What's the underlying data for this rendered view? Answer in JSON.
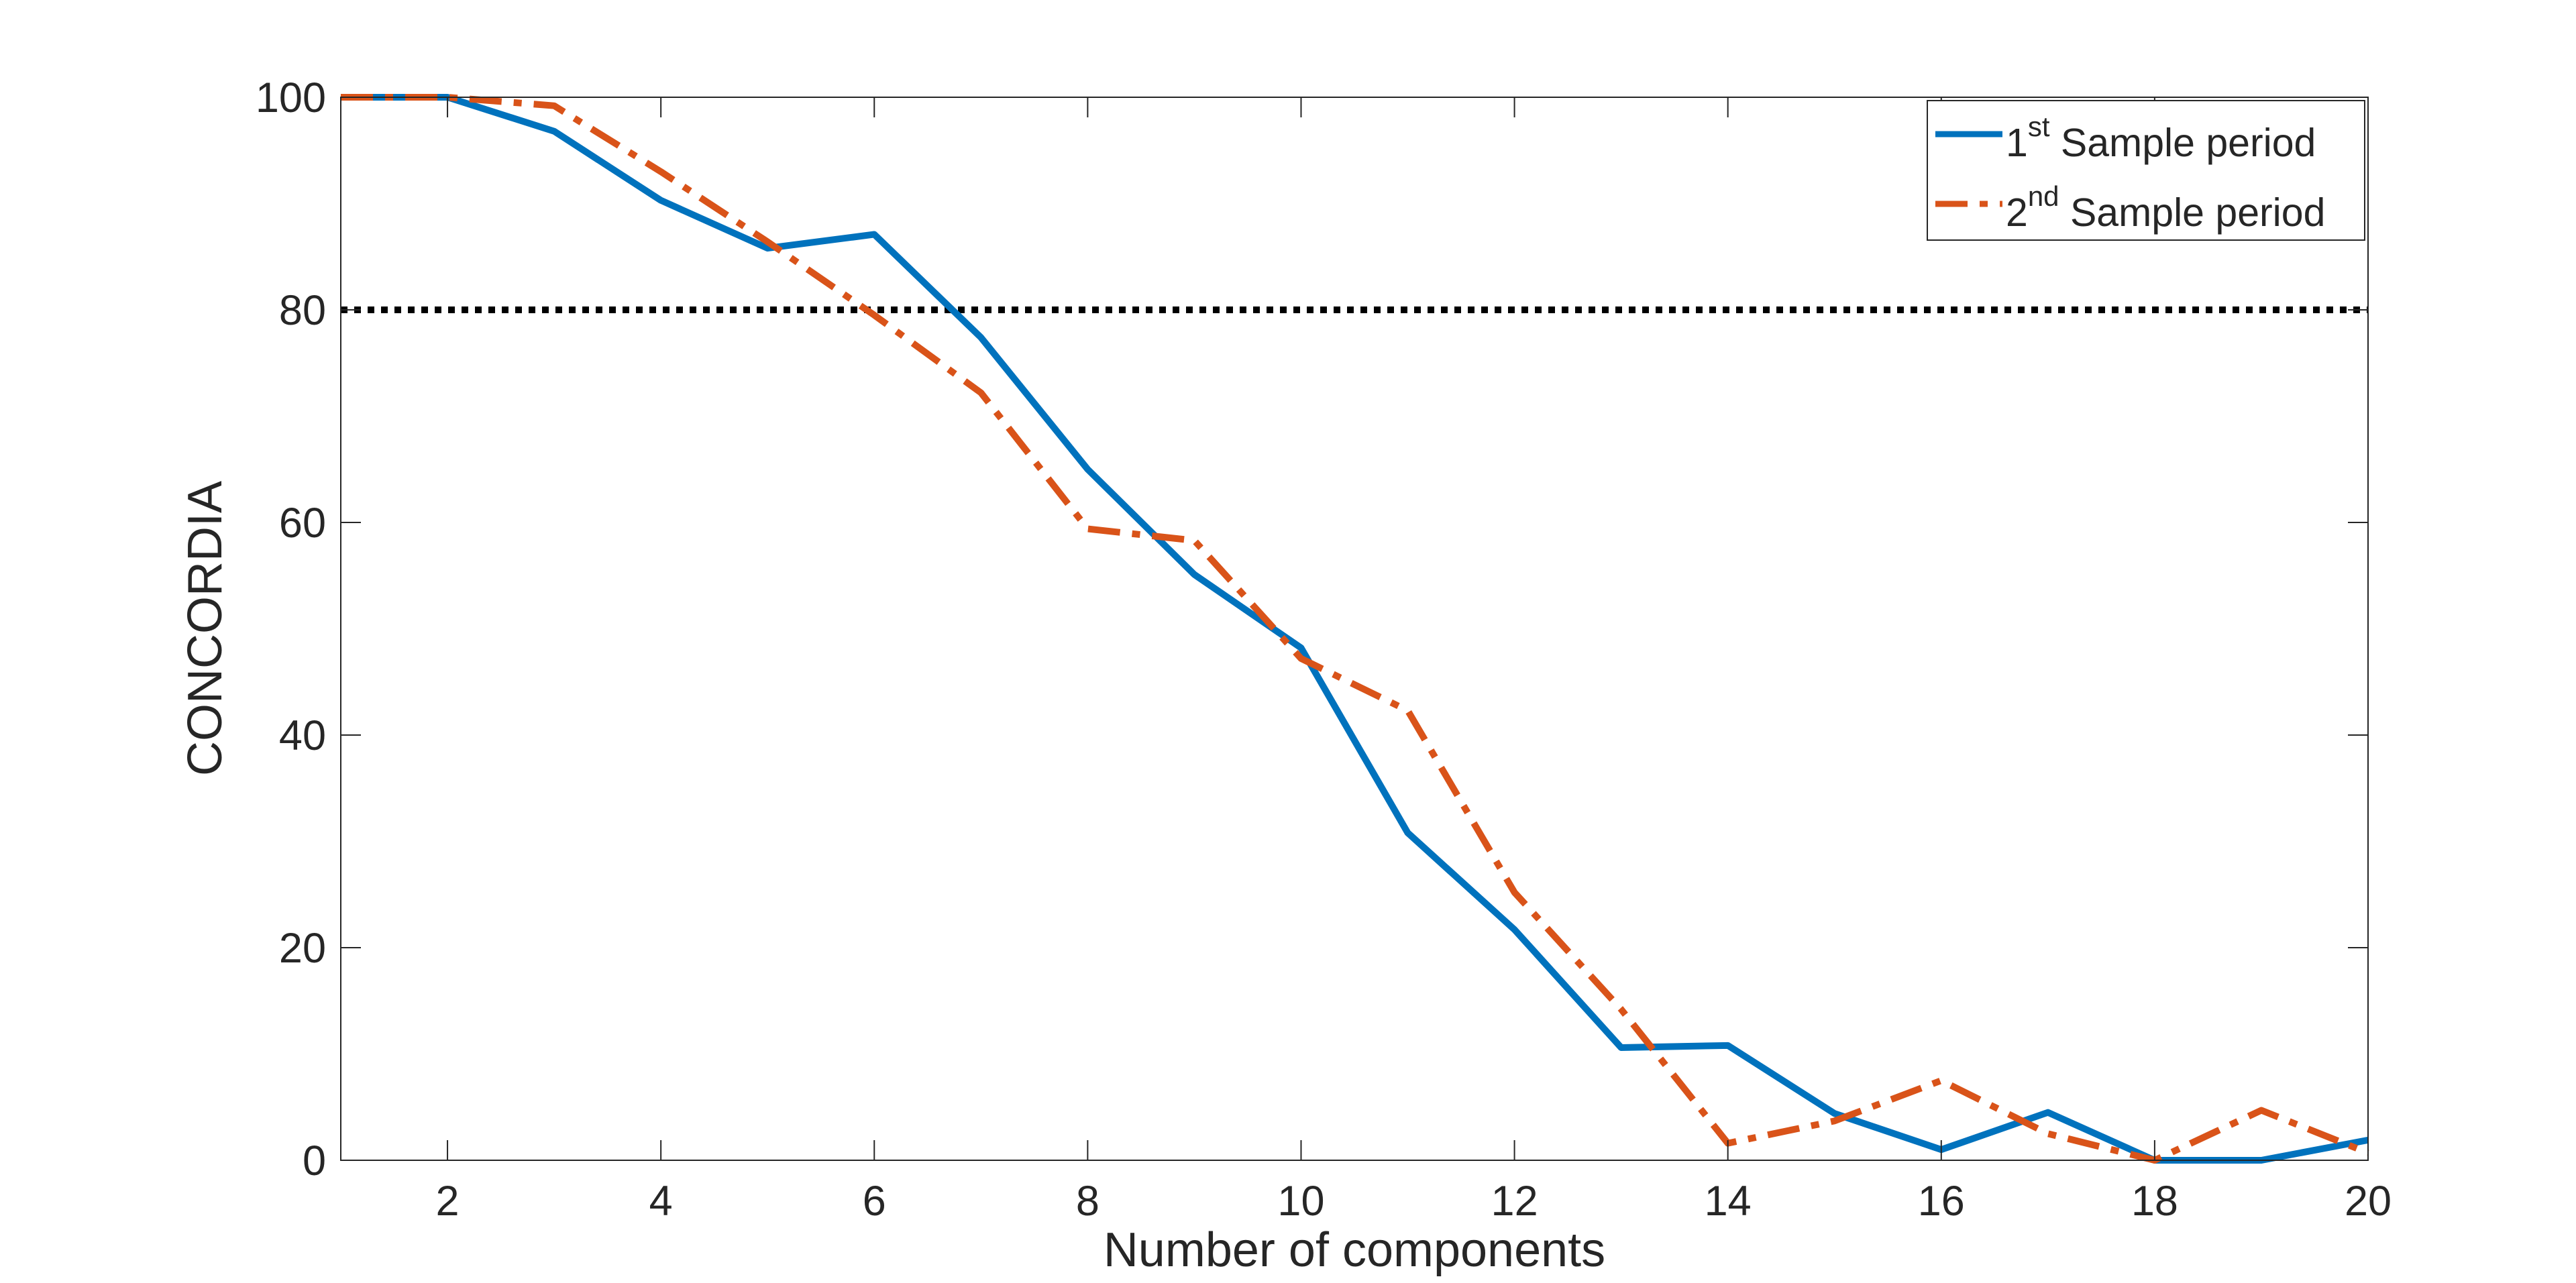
{
  "chart_data": {
    "type": "line",
    "title": "",
    "xlabel": "Number of components",
    "ylabel": "CONCORDIA",
    "xlim": [
      1,
      20
    ],
    "ylim": [
      0,
      100
    ],
    "xticks": [
      2,
      4,
      6,
      8,
      10,
      12,
      14,
      16,
      18,
      20
    ],
    "yticks": [
      0,
      20,
      40,
      60,
      80,
      100
    ],
    "x": [
      1,
      2,
      3,
      4,
      5,
      6,
      7,
      8,
      9,
      10,
      11,
      12,
      13,
      14,
      15,
      16,
      17,
      18,
      19,
      20
    ],
    "series": [
      {
        "name": "1st Sample period",
        "label_main": "1",
        "label_sup": "st",
        "label_rest": " Sample period",
        "color": "#0072BD",
        "style": "solid",
        "values": [
          100,
          100,
          96.8,
          90.3,
          85.8,
          87.1,
          77.4,
          65.0,
          55.1,
          48.2,
          30.8,
          21.7,
          10.6,
          10.8,
          4.4,
          1.0,
          4.5,
          0,
          0,
          1.9
        ]
      },
      {
        "name": "2nd Sample period",
        "label_main": "2",
        "label_sup": "nd",
        "label_rest": " Sample period",
        "color": "#D95319",
        "style": "dashdot",
        "values": [
          100,
          100,
          99.2,
          93.0,
          86.4,
          79.5,
          72.2,
          59.4,
          58.3,
          47.2,
          42.3,
          25.2,
          14.2,
          1.6,
          3.7,
          7.5,
          2.5,
          0,
          4.7,
          0.7
        ]
      }
    ],
    "reference_line": {
      "y": 80,
      "color": "#000000",
      "style": "dotted"
    },
    "legend_position": "top-right",
    "grid": false
  }
}
